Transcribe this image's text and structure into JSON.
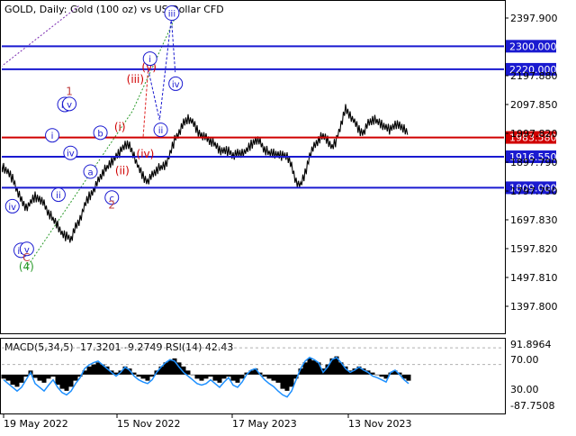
{
  "header": {
    "title": "GOLD, Daily:  Gold (100 oz) vs US Dollar CFD"
  },
  "chart_data": {
    "type": "line",
    "title": "GOLD, Daily:  Gold (100 oz) vs US Dollar CFD",
    "ylim": [
      1335,
      2440
    ],
    "price_ticks": [
      "2397.900",
      "2197.880",
      "2097.850",
      "1997.820",
      "1897.790",
      "1797.750",
      "1697.830",
      "1597.820",
      "1497.810",
      "1397.800"
    ],
    "x_ticks": [
      "19 May 2022",
      "15 Nov 2022",
      "17 May 2023",
      "13 Nov 2023"
    ],
    "levels": [
      {
        "label": "2300.000",
        "value": 2300,
        "color": "#1a1ad0"
      },
      {
        "label": "2220.000",
        "value": 2220,
        "color": "#1a1ad0"
      },
      {
        "label": "1983.580",
        "value": 1983.58,
        "color": "#d00000"
      },
      {
        "label": "1916.550",
        "value": 1916.55,
        "color": "#1a1ad0"
      },
      {
        "label": "1809.000",
        "value": 1809,
        "color": "#1a1ad0"
      }
    ],
    "price_path": [
      1880,
      1865,
      1840,
      1800,
      1760,
      1740,
      1760,
      1780,
      1770,
      1750,
      1720,
      1700,
      1680,
      1650,
      1640,
      1630,
      1670,
      1700,
      1750,
      1780,
      1800,
      1830,
      1860,
      1880,
      1900,
      1920,
      1935,
      1960,
      1950,
      1920,
      1880,
      1850,
      1830,
      1850,
      1870,
      1880,
      1890,
      1930,
      1975,
      2000,
      2030,
      2050,
      2040,
      2010,
      1990,
      1980,
      1970,
      1960,
      1940,
      1940,
      1935,
      1920,
      1925,
      1930,
      1940,
      1960,
      1975,
      1965,
      1940,
      1930,
      1930,
      1925,
      1920,
      1920,
      1880,
      1830,
      1820,
      1860,
      1920,
      1950,
      1975,
      1990,
      1975,
      1950,
      1975,
      2030,
      2080,
      2060,
      2040,
      2010,
      2000,
      2030,
      2045,
      2040,
      2030,
      2020,
      2010,
      2030,
      2020,
      2015,
      2000
    ],
    "waves": [
      {
        "label": "iv",
        "style": "circle",
        "color": "#1a1ad0",
        "x": "2022-06-25",
        "y": 1745
      },
      {
        "label": "iii",
        "style": "circle",
        "color": "#1a1ad0",
        "x": "2022-08-01",
        "y": 1592
      },
      {
        "label": "v",
        "style": "circle",
        "color": "#1a1ad0",
        "x": "2022-08-25",
        "y": 1597
      },
      {
        "label": "C",
        "style": "plain",
        "color": "#c04040",
        "x": "2022-08-23",
        "y": 1567
      },
      {
        "label": "(4)",
        "style": "plain",
        "color": "#2a9a2a",
        "x": "2022-08-23",
        "y": 1536
      },
      {
        "label": "i",
        "style": "circle",
        "color": "#1a1ad0",
        "x": "2022-12-10",
        "y": 1991
      },
      {
        "label": "ii",
        "style": "circle",
        "color": "#1a1ad0",
        "x": "2023-01-05",
        "y": 1785
      },
      {
        "label": "iii",
        "style": "circle",
        "color": "#1a1ad0",
        "x": "2023-02-01",
        "y": 2098
      },
      {
        "label": "v",
        "style": "circle",
        "color": "#1a1ad0",
        "x": "2023-02-20",
        "y": 2100
      },
      {
        "label": "1",
        "style": "plain",
        "color": "#c04040",
        "x": "2023-02-20",
        "y": 2143
      },
      {
        "label": "iv",
        "style": "circle",
        "color": "#1a1ad0",
        "x": "2023-02-25",
        "y": 1930
      },
      {
        "label": "a",
        "style": "circle",
        "color": "#1a1ad0",
        "x": "2023-05-20",
        "y": 1865
      },
      {
        "label": "b",
        "style": "circle",
        "color": "#1a1ad0",
        "x": "2023-07-01",
        "y": 2000
      },
      {
        "label": "c",
        "style": "circle",
        "color": "#1a1ad0",
        "x": "2023-08-18",
        "y": 1775
      },
      {
        "label": "2",
        "style": "plain",
        "color": "#c04040",
        "x": "2023-08-18",
        "y": 1750
      },
      {
        "label": "(i)",
        "style": "plain",
        "color": "#d00000",
        "x": "2023-09-21",
        "y": 2020
      },
      {
        "label": "(ii)",
        "style": "plain",
        "color": "#d00000",
        "x": "2023-10-01",
        "y": 1868
      },
      {
        "label": "(iii)",
        "style": "plain",
        "color": "#d00000",
        "x": "2023-11-25",
        "y": 2185
      },
      {
        "label": "(iv)",
        "style": "plain",
        "color": "#d00000",
        "x": "2024-01-06",
        "y": 1926
      },
      {
        "label": "(v)",
        "style": "plain",
        "color": "#d00000",
        "x": "2024-01-22",
        "y": 2227
      },
      {
        "label": "i",
        "style": "circle",
        "color": "#1a1ad0",
        "x": "2024-01-26",
        "y": 2257
      },
      {
        "label": "ii",
        "style": "circle",
        "color": "#1a1ad0",
        "x": "2024-03-11",
        "y": 2010
      },
      {
        "label": "iii",
        "style": "circle",
        "color": "#1a1ad0",
        "x": "2024-04-27",
        "y": 2415
      },
      {
        "label": "iv",
        "style": "circle",
        "color": "#1a1ad0",
        "x": "2024-05-13",
        "y": 2170
      }
    ],
    "forecast": {
      "red": [
        [
          "2023-12-28",
          1987
        ],
        [
          "2024-01-18",
          2220
        ]
      ],
      "blue": [
        [
          "2024-01-18",
          2220
        ],
        [
          "2024-03-06",
          2044
        ],
        [
          "2024-04-25",
          2398
        ],
        [
          "2024-05-11",
          2210
        ]
      ]
    },
    "channels": {
      "green": [
        [
          "2022-08-22",
          1530
        ],
        [
          "2023-11-13",
          2075
        ],
        [
          "2024-05-11",
          2400
        ]
      ],
      "purple": [
        [
          "2022-04-01",
          2205
        ],
        [
          "2023-04-01",
          2440
        ]
      ]
    },
    "macd_label": "MACD(5,34,5) -17.3201 -9.2749 RSI(14) 42.43",
    "macd_ticks": [
      "91.8964",
      "70.00",
      "30.00",
      "-87.7508"
    ],
    "macd_bars": [
      -10,
      -15,
      -25,
      -30,
      -20,
      -5,
      10,
      -8,
      -15,
      -20,
      -10,
      -5,
      -25,
      -35,
      -40,
      -30,
      -15,
      -5,
      10,
      20,
      25,
      30,
      25,
      20,
      10,
      5,
      10,
      20,
      15,
      5,
      -5,
      -10,
      -15,
      -5,
      10,
      20,
      30,
      35,
      40,
      30,
      20,
      10,
      0,
      -10,
      -15,
      -10,
      -5,
      -15,
      -20,
      -10,
      -5,
      -15,
      -20,
      -10,
      5,
      10,
      15,
      5,
      -5,
      -10,
      -15,
      -20,
      -35,
      -40,
      -30,
      -10,
      15,
      30,
      40,
      35,
      30,
      15,
      25,
      40,
      45,
      30,
      20,
      10,
      15,
      20,
      15,
      10,
      5,
      0,
      -5,
      -10,
      5,
      10,
      5,
      -10,
      -15
    ],
    "rsi_values": [
      45,
      40,
      35,
      30,
      35,
      45,
      55,
      40,
      35,
      30,
      38,
      45,
      35,
      28,
      25,
      30,
      40,
      48,
      60,
      65,
      68,
      70,
      65,
      60,
      55,
      50,
      55,
      62,
      58,
      50,
      45,
      42,
      40,
      45,
      55,
      62,
      68,
      72,
      70,
      62,
      55,
      50,
      45,
      40,
      38,
      40,
      45,
      40,
      35,
      42,
      48,
      38,
      35,
      42,
      52,
      58,
      60,
      52,
      45,
      40,
      36,
      30,
      25,
      22,
      30,
      45,
      60,
      70,
      75,
      72,
      68,
      55,
      62,
      72,
      75,
      68,
      60,
      55,
      58,
      62,
      58,
      55,
      50,
      48,
      45,
      42,
      55,
      58,
      52,
      45,
      40
    ]
  }
}
